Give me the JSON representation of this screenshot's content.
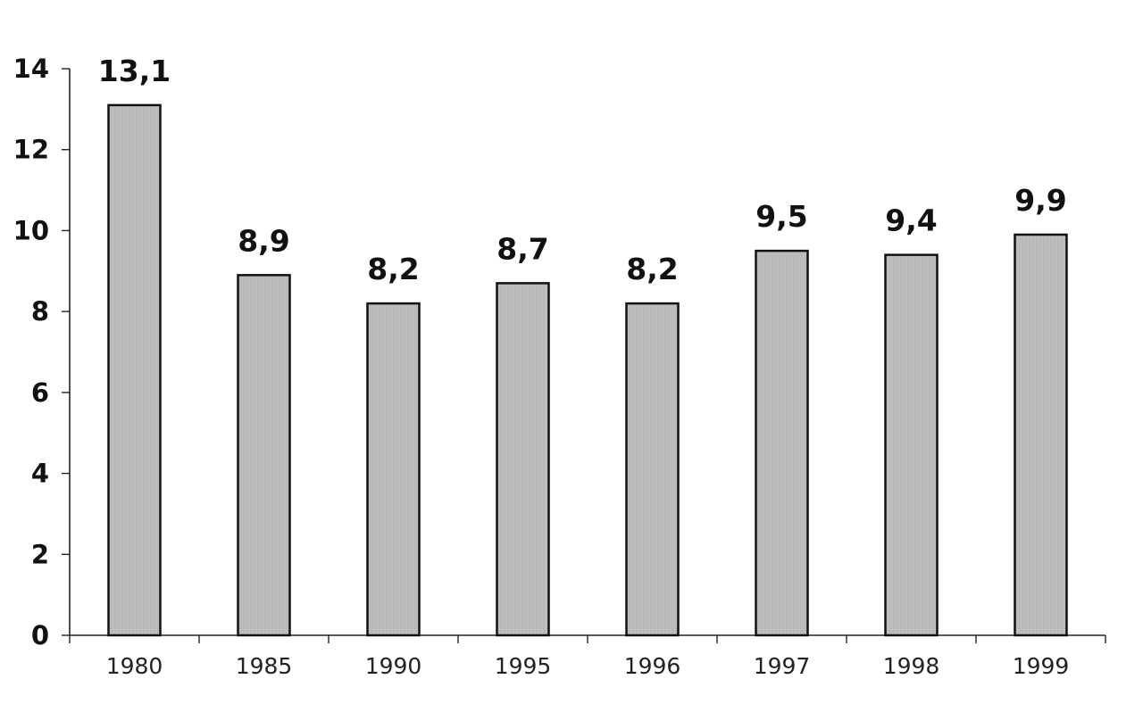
{
  "chart_data": {
    "type": "bar",
    "categories": [
      "1980",
      "1985",
      "1990",
      "1995",
      "1996",
      "1997",
      "1998",
      "1999"
    ],
    "values": [
      13.1,
      8.9,
      8.2,
      8.7,
      8.2,
      9.5,
      9.4,
      9.9
    ],
    "data_labels": [
      "13,1",
      "8,9",
      "8,2",
      "8,7",
      "8,2",
      "9,5",
      "9,4",
      "9,9"
    ],
    "yticks": [
      0,
      2,
      4,
      6,
      8,
      10,
      12,
      14
    ],
    "ylim": [
      0,
      14
    ],
    "grid": false,
    "legend": "none",
    "colors": {
      "bar_fill": "#b9b9b9",
      "bar_edge": "#111111",
      "axis": "#222222"
    }
  }
}
